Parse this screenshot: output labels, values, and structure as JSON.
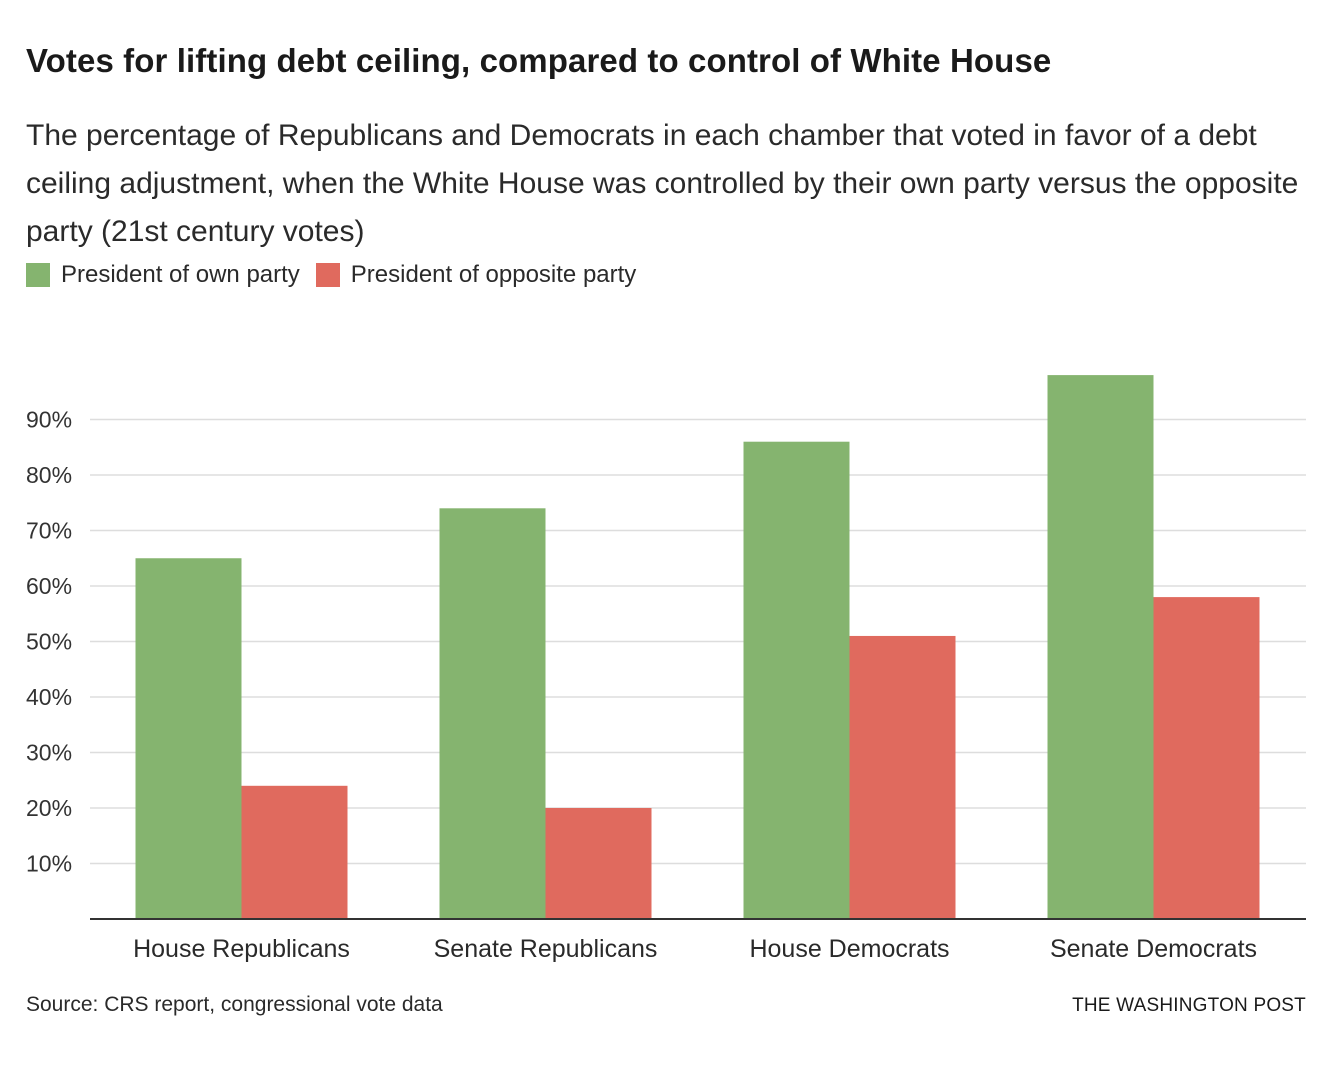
{
  "header": {
    "title": "Votes for lifting debt ceiling, compared to control of White House",
    "subtitle": "The percentage of Republicans and Democrats in each chamber that voted in favor of a debt ceiling adjustment, when the White House was controlled by their own party versus the opposite party (21st century votes)"
  },
  "legend": {
    "items": [
      {
        "label": "President of own party",
        "color": "#85b46f"
      },
      {
        "label": "President of opposite party",
        "color": "#e06a5e"
      }
    ],
    "placement": "top-left"
  },
  "footer": {
    "source": "Source: CRS report, congressional vote data",
    "credit": "THE WASHINGTON POST"
  },
  "chart_data": {
    "type": "bar",
    "title": "Votes for lifting debt ceiling, compared to control of White House",
    "xlabel": "",
    "ylabel": "",
    "categories": [
      "House Republicans",
      "Senate Republicans",
      "House Democrats",
      "Senate Democrats"
    ],
    "series": [
      {
        "name": "President of own party",
        "color": "#85b46f",
        "values": [
          65,
          74,
          86,
          98
        ]
      },
      {
        "name": "President of opposite party",
        "color": "#e06a5e",
        "values": [
          24,
          20,
          51,
          58
        ]
      }
    ],
    "ylim": [
      0,
      100
    ],
    "yticks": [
      10,
      20,
      30,
      40,
      50,
      60,
      70,
      80,
      90
    ],
    "ytick_labels": [
      "10%",
      "20%",
      "30%",
      "40%",
      "50%",
      "60%",
      "70%",
      "80%",
      "90%"
    ],
    "grid": true,
    "gridline_color": "#dddddd",
    "axis_color": "#333333"
  }
}
